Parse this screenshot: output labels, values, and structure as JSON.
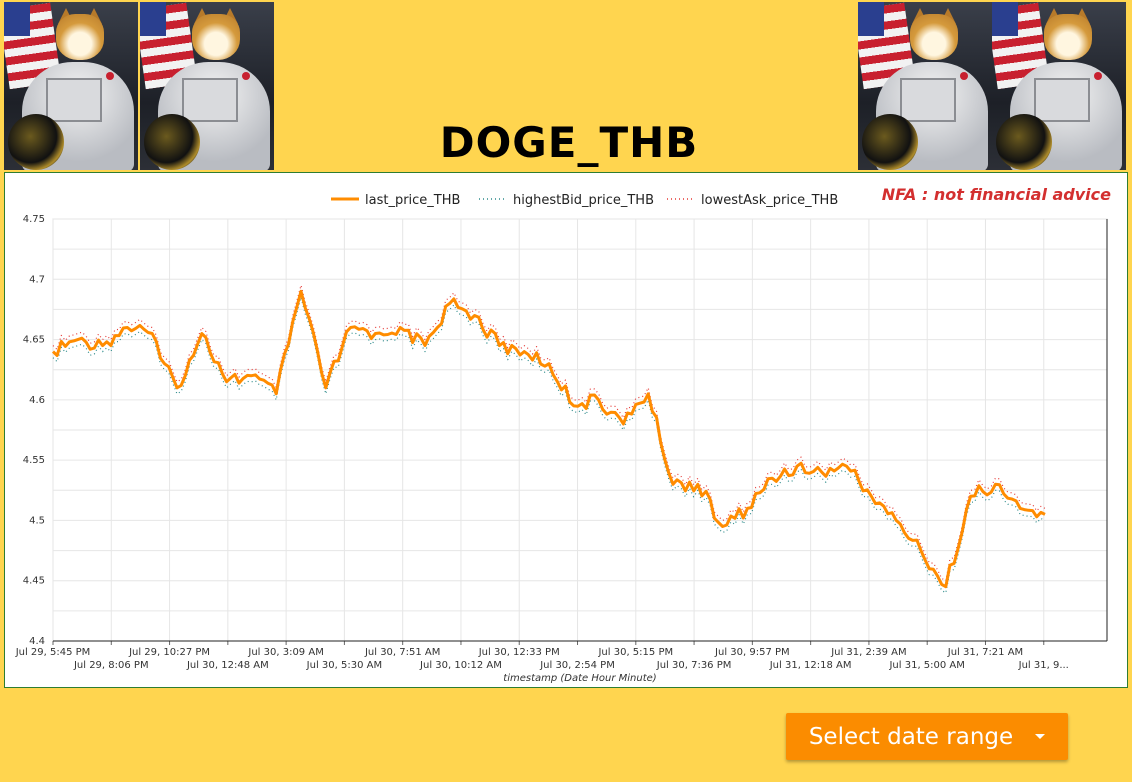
{
  "header": {
    "title": "DOGE_THB",
    "images": [
      "doge-astronaut-image",
      "doge-astronaut-image",
      "doge-astronaut-image",
      "doge-astronaut-image"
    ]
  },
  "disclaimer": "NFA : not financial advice",
  "date_range_button": {
    "label": "Select date range",
    "icon": "caret-down-icon"
  },
  "colors": {
    "background": "#ffd54f",
    "last_price": "#ff8c00",
    "highest_bid": "#2e8b8b",
    "lowest_ask": "#e53935",
    "button": "#fb8c00",
    "disclaimer": "#d32f2f"
  },
  "chart_data": {
    "type": "line",
    "title": "",
    "xlabel": "timestamp (Date Hour Minute)",
    "ylabel": "",
    "ylim": [
      4.4,
      4.75
    ],
    "yticks": [
      "4.75",
      "4.7",
      "4.65",
      "4.6",
      "4.55",
      "4.5",
      "4.45",
      "4.4"
    ],
    "xticks_upper": [
      "Jul 29, 5:45 PM",
      "Jul 29, 10:27 PM",
      "Jul 30, 3:09 AM",
      "Jul 30, 7:51 AM",
      "Jul 30, 12:33 PM",
      "Jul 30, 5:15 PM",
      "Jul 30, 9:57 PM",
      "Jul 31, 2:39 AM",
      "Jul 31, 7:21 AM"
    ],
    "xticks_lower": [
      "Jul 29, 8:06 PM",
      "Jul 30, 12:48 AM",
      "Jul 30, 5:30 AM",
      "Jul 30, 10:12 AM",
      "Jul 30, 2:54 PM",
      "Jul 30, 7:36 PM",
      "Jul 31, 12:18 AM",
      "Jul 31, 5:00 AM",
      "Jul 31, 9..."
    ],
    "x_hours_from_first_tick": [
      0,
      1,
      2,
      3,
      4,
      5,
      6,
      7,
      8,
      9,
      10,
      11,
      12,
      13,
      14,
      15,
      16,
      17,
      18,
      19,
      20,
      21,
      22,
      23,
      24,
      25,
      26,
      27,
      28,
      29,
      30,
      31,
      32,
      33,
      34,
      35,
      36,
      37,
      38,
      39,
      40
    ],
    "legend": [
      "last_price_THB",
      "highestBid_price_THB",
      "lowestAsk_price_THB"
    ],
    "legend_position": "top-center",
    "grid": true,
    "series": [
      {
        "name": "last_price_THB",
        "style": "solid",
        "values": [
          4.64,
          4.65,
          4.645,
          4.66,
          4.655,
          4.61,
          4.655,
          4.615,
          4.62,
          4.605,
          4.69,
          4.61,
          4.66,
          4.655,
          4.66,
          4.645,
          4.68,
          4.67,
          4.645,
          4.64,
          4.63,
          4.595,
          4.6,
          4.58,
          4.605,
          4.53,
          4.53,
          4.495,
          4.51,
          4.535,
          4.545,
          4.54,
          4.545,
          4.52,
          4.5,
          4.475,
          4.445,
          4.52,
          4.53,
          4.51,
          4.505
        ]
      },
      {
        "name": "highestBid_price_THB",
        "style": "dotted",
        "values": [
          4.635,
          4.645,
          4.64,
          4.655,
          4.65,
          4.605,
          4.65,
          4.61,
          4.615,
          4.6,
          4.685,
          4.605,
          4.655,
          4.65,
          4.655,
          4.64,
          4.675,
          4.665,
          4.64,
          4.635,
          4.625,
          4.59,
          4.595,
          4.575,
          4.6,
          4.525,
          4.525,
          4.49,
          4.505,
          4.53,
          4.54,
          4.535,
          4.54,
          4.515,
          4.495,
          4.47,
          4.44,
          4.515,
          4.525,
          4.505,
          4.5
        ]
      },
      {
        "name": "lowestAsk_price_THB",
        "style": "dotted",
        "values": [
          4.645,
          4.655,
          4.65,
          4.665,
          4.66,
          4.615,
          4.66,
          4.62,
          4.625,
          4.61,
          4.695,
          4.615,
          4.665,
          4.66,
          4.665,
          4.65,
          4.685,
          4.675,
          4.65,
          4.645,
          4.635,
          4.6,
          4.605,
          4.585,
          4.61,
          4.535,
          4.535,
          4.5,
          4.515,
          4.54,
          4.55,
          4.545,
          4.55,
          4.525,
          4.505,
          4.48,
          4.45,
          4.525,
          4.535,
          4.515,
          4.51
        ]
      }
    ]
  }
}
